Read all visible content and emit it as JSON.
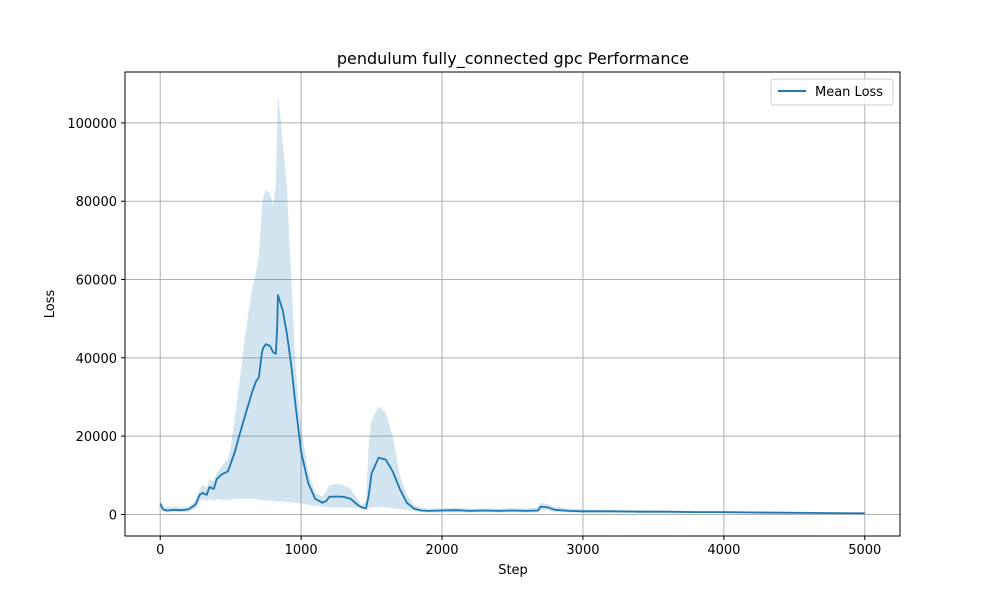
{
  "chart_data": {
    "type": "line",
    "title": "pendulum fully_connected gpc Performance",
    "xlabel": "Step",
    "ylabel": "Loss",
    "xlim": [
      -250,
      5250
    ],
    "ylim": [
      -5500,
      113000
    ],
    "xticks": [
      0,
      1000,
      2000,
      3000,
      4000,
      5000
    ],
    "yticks": [
      0,
      20000,
      40000,
      60000,
      80000,
      100000
    ],
    "grid": true,
    "legend": {
      "placement": "top-right",
      "entries": [
        "Mean Loss"
      ]
    },
    "colors": {
      "line": "#1f77b4",
      "band": "#1f77b4"
    },
    "series": [
      {
        "name": "Mean Loss",
        "x": [
          0,
          20,
          50,
          100,
          150,
          200,
          250,
          280,
          300,
          330,
          350,
          380,
          400,
          430,
          450,
          480,
          500,
          530,
          560,
          600,
          650,
          680,
          700,
          720,
          730,
          750,
          780,
          800,
          820,
          830,
          835,
          840,
          870,
          900,
          930,
          960,
          1000,
          1050,
          1100,
          1150,
          1180,
          1200,
          1250,
          1300,
          1350,
          1400,
          1430,
          1460,
          1480,
          1500,
          1550,
          1600,
          1650,
          1700,
          1750,
          1800,
          1850,
          1900,
          2000,
          2100,
          2200,
          2300,
          2400,
          2500,
          2600,
          2680,
          2700,
          2750,
          2800,
          2900,
          3000,
          3200,
          3400,
          3600,
          3800,
          4000,
          4200,
          4400,
          4600,
          4800,
          5000
        ],
        "y": [
          2800,
          1300,
          1000,
          1200,
          1100,
          1300,
          2500,
          5000,
          5500,
          5000,
          7000,
          6500,
          9000,
          10000,
          10500,
          11000,
          13000,
          16000,
          20000,
          25000,
          31000,
          34000,
          35000,
          41000,
          42500,
          43500,
          43000,
          41500,
          41000,
          48000,
          56000,
          55500,
          52000,
          46000,
          38000,
          28000,
          16000,
          8000,
          4000,
          3000,
          3500,
          4500,
          4600,
          4500,
          4000,
          2500,
          1800,
          1500,
          5000,
          10500,
          14500,
          14000,
          11000,
          6500,
          3000,
          1500,
          1000,
          900,
          1000,
          1100,
          900,
          1000,
          900,
          1000,
          900,
          1000,
          2000,
          1800,
          1200,
          900,
          800,
          800,
          700,
          700,
          600,
          600,
          500,
          450,
          400,
          350,
          300
        ],
        "upper": [
          3500,
          2000,
          1800,
          2000,
          1800,
          2000,
          3500,
          6500,
          7500,
          7000,
          9000,
          8500,
          10500,
          12000,
          13000,
          14000,
          17000,
          25000,
          33000,
          45000,
          57000,
          62000,
          66000,
          78000,
          81000,
          83000,
          82000,
          79000,
          84000,
          100000,
          107000,
          106000,
          95000,
          83000,
          60000,
          38000,
          22000,
          11000,
          5500,
          4500,
          6000,
          7500,
          7800,
          7500,
          6500,
          4000,
          2500,
          3500,
          18000,
          24000,
          27500,
          26000,
          20000,
          10000,
          5000,
          2500,
          1800,
          1500,
          1600,
          1700,
          1500,
          1600,
          1500,
          1600,
          1500,
          1800,
          3000,
          2700,
          2000,
          1500,
          1300,
          1200,
          1100,
          1000,
          900,
          900,
          800,
          700,
          600,
          500,
          450
        ],
        "lower": [
          2200,
          700,
          500,
          700,
          600,
          700,
          1500,
          3500,
          4000,
          3500,
          4000,
          3500,
          4000,
          3800,
          3700,
          3700,
          3800,
          4000,
          4000,
          4000,
          4000,
          4000,
          3800,
          3700,
          3600,
          3500,
          3600,
          3500,
          3300,
          3300,
          3300,
          3300,
          3300,
          3200,
          3100,
          3000,
          2800,
          2500,
          2200,
          2000,
          1800,
          1800,
          1800,
          1800,
          1700,
          1600,
          1500,
          1400,
          1700,
          1800,
          1900,
          1800,
          1600,
          1400,
          1200,
          1000,
          700,
          500,
          500,
          600,
          500,
          600,
          500,
          600,
          500,
          500,
          1200,
          1100,
          700,
          500,
          400,
          400,
          350,
          350,
          300,
          300,
          250,
          200,
          200,
          150,
          150
        ]
      }
    ]
  }
}
